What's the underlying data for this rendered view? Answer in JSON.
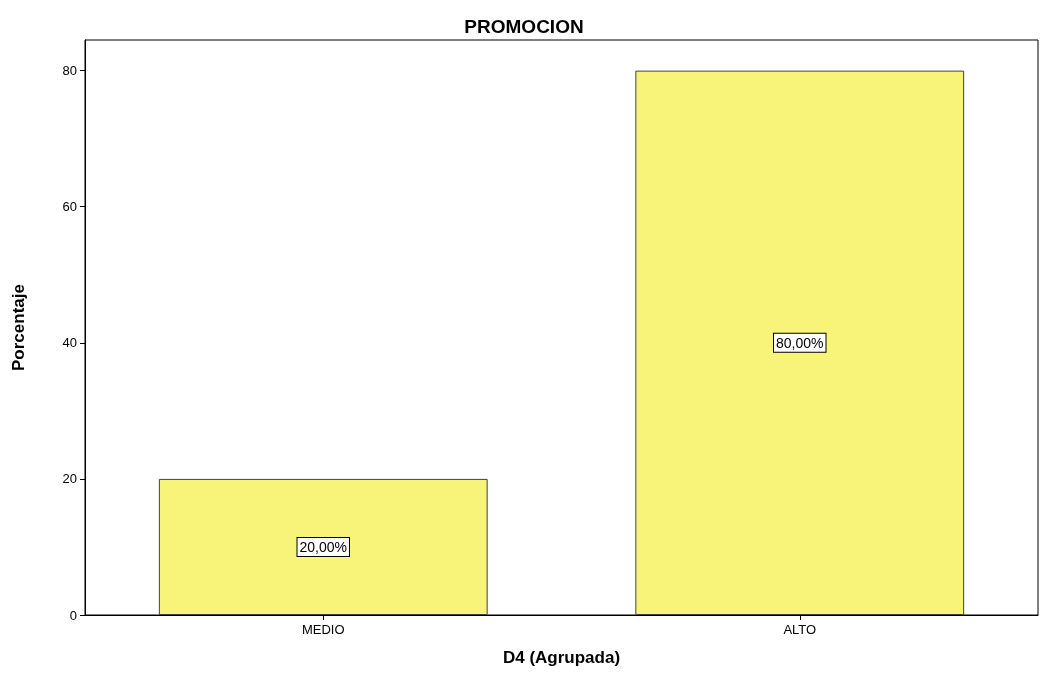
{
  "chart_data": {
    "type": "bar",
    "title": "PROMOCION",
    "xlabel": "D4 (Agrupada)",
    "ylabel": "Porcentaje",
    "categories": [
      "MEDIO",
      "ALTO"
    ],
    "values": [
      20,
      80
    ],
    "color": "#f8f47a",
    "value_labels": [
      "20,00%",
      "80,00%"
    ],
    "ylim": [
      0,
      84.5
    ],
    "yticks": [
      0,
      20,
      40,
      60,
      80
    ],
    "grid": false
  }
}
